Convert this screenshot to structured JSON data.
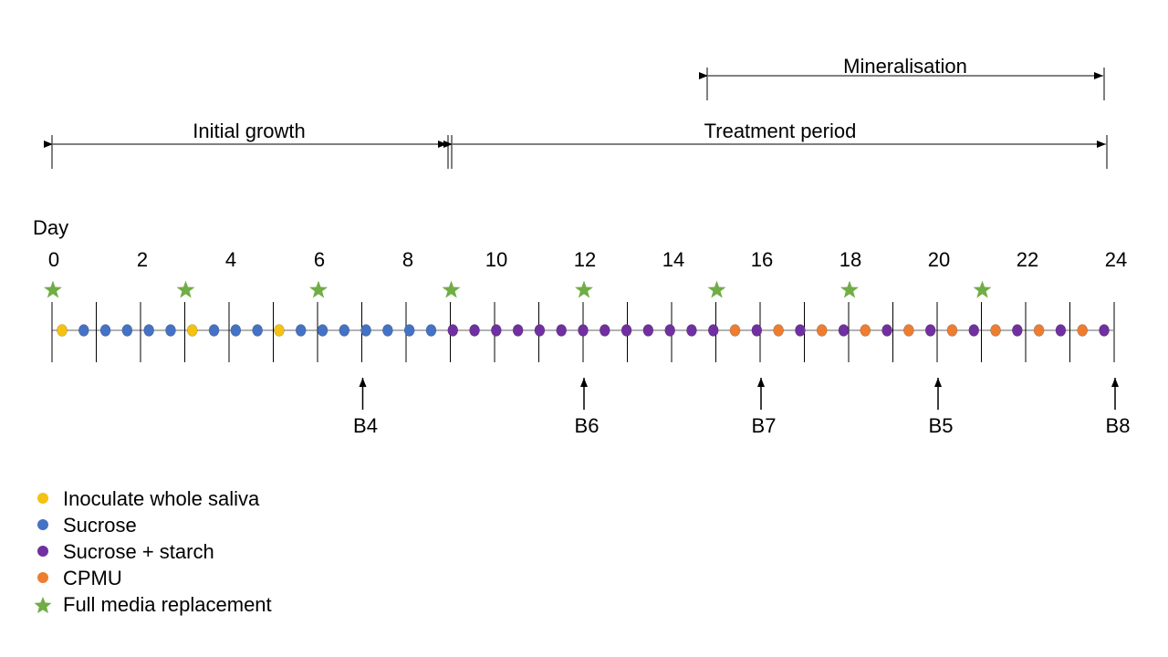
{
  "periods": {
    "initial_growth": "Initial growth",
    "treatment": "Treatment period",
    "mineralisation": "Mineralisation"
  },
  "timeline": {
    "axis_label": "Day",
    "day_labels": [
      "0",
      "2",
      "4",
      "6",
      "8",
      "10",
      "12",
      "14",
      "16",
      "18",
      "20",
      "22",
      "24"
    ],
    "treatments": [
      "Y",
      "B",
      "B",
      "B",
      "B",
      "B",
      "Y",
      "B",
      "B",
      "B",
      "Y",
      "B",
      "B",
      "B",
      "B",
      "B",
      "B",
      "B",
      "P",
      "P",
      "P",
      "P",
      "P",
      "P",
      "P",
      "P",
      "P",
      "P",
      "P",
      "P",
      "P",
      "O",
      "P",
      "O",
      "P",
      "O",
      "P",
      "O",
      "P",
      "O",
      "P",
      "O",
      "P",
      "O",
      "P",
      "O",
      "P",
      "O",
      "P"
    ],
    "media_replacement_days": [
      0,
      3,
      6,
      9,
      12,
      15,
      18,
      21
    ],
    "biofilm_samples": [
      {
        "label": "B4",
        "day": 7
      },
      {
        "label": "B6",
        "day": 12
      },
      {
        "label": "B7",
        "day": 16
      },
      {
        "label": "B5",
        "day": 20
      },
      {
        "label": "B8",
        "day": 24
      }
    ]
  },
  "legend": [
    {
      "key": "Y",
      "label": "Inoculate whole saliva",
      "marker": "circle",
      "color": "#f5c211"
    },
    {
      "key": "B",
      "label": "Sucrose",
      "marker": "circle",
      "color": "#4472c4"
    },
    {
      "key": "P",
      "label": "Sucrose + starch",
      "marker": "circle",
      "color": "#7030a0"
    },
    {
      "key": "O",
      "label": "CPMU",
      "marker": "circle",
      "color": "#ed7d31"
    },
    {
      "key": "S",
      "label": "Full media replacement",
      "marker": "star-icon",
      "color": "#70ad47"
    }
  ]
}
